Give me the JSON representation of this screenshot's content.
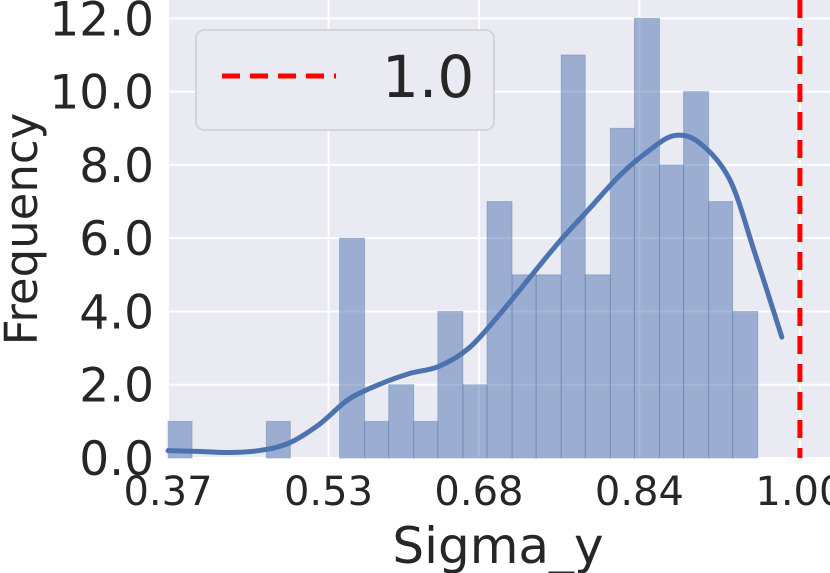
{
  "chart_data": {
    "type": "bar",
    "subtype": "histogram with kde",
    "xlabel": "Sigma_y",
    "ylabel": "Frequency",
    "xlim": [
      0.37,
      1.03
    ],
    "ylim": [
      0,
      12.5
    ],
    "x_ticks": [
      "0.37",
      "0.53",
      "0.68",
      "0.84",
      "1.00"
    ],
    "x_tick_values": [
      0.37,
      0.53,
      0.68,
      0.84,
      1.0
    ],
    "y_ticks": [
      "0.0",
      "2.0",
      "4.0",
      "6.0",
      "8.0",
      "10.0",
      "12.0"
    ],
    "y_tick_values": [
      0,
      2,
      4,
      6,
      8,
      10,
      12
    ],
    "bin_edges": [
      0.37,
      0.394,
      0.419,
      0.443,
      0.468,
      0.492,
      0.517,
      0.541,
      0.566,
      0.59,
      0.615,
      0.639,
      0.664,
      0.688,
      0.713,
      0.737,
      0.762,
      0.786,
      0.811,
      0.835,
      0.86,
      0.884,
      0.909,
      0.933,
      0.958,
      0.982
    ],
    "counts": [
      1,
      0,
      0,
      0,
      1,
      0,
      0,
      6,
      1,
      2,
      1,
      4,
      2,
      7,
      5,
      5,
      11,
      5,
      9,
      12,
      8,
      10,
      7,
      4,
      0
    ],
    "kde": {
      "x": [
        0.37,
        0.4,
        0.43,
        0.46,
        0.49,
        0.52,
        0.55,
        0.58,
        0.61,
        0.64,
        0.67,
        0.7,
        0.73,
        0.76,
        0.79,
        0.82,
        0.85,
        0.875,
        0.9,
        0.93,
        0.955,
        0.982
      ],
      "y": [
        0.2,
        0.18,
        0.15,
        0.2,
        0.4,
        0.9,
        1.6,
        2.0,
        2.3,
        2.5,
        3.0,
        3.9,
        4.9,
        5.9,
        6.8,
        7.7,
        8.4,
        8.8,
        8.6,
        7.6,
        5.6,
        3.3
      ]
    },
    "reference_line": {
      "x": 1.0,
      "label": "1.0",
      "color": "#ff0000",
      "style": "dashed"
    },
    "legend": {
      "placement": "top-left",
      "entries": [
        "1.0"
      ]
    },
    "grid": true,
    "colors": {
      "background": "#eaeaf2",
      "grid": "#ffffff",
      "bar_fill": "#4c72b0",
      "kde_line": "#4c72b0",
      "reference_line": "#ff0000",
      "text": "#262626"
    }
  }
}
